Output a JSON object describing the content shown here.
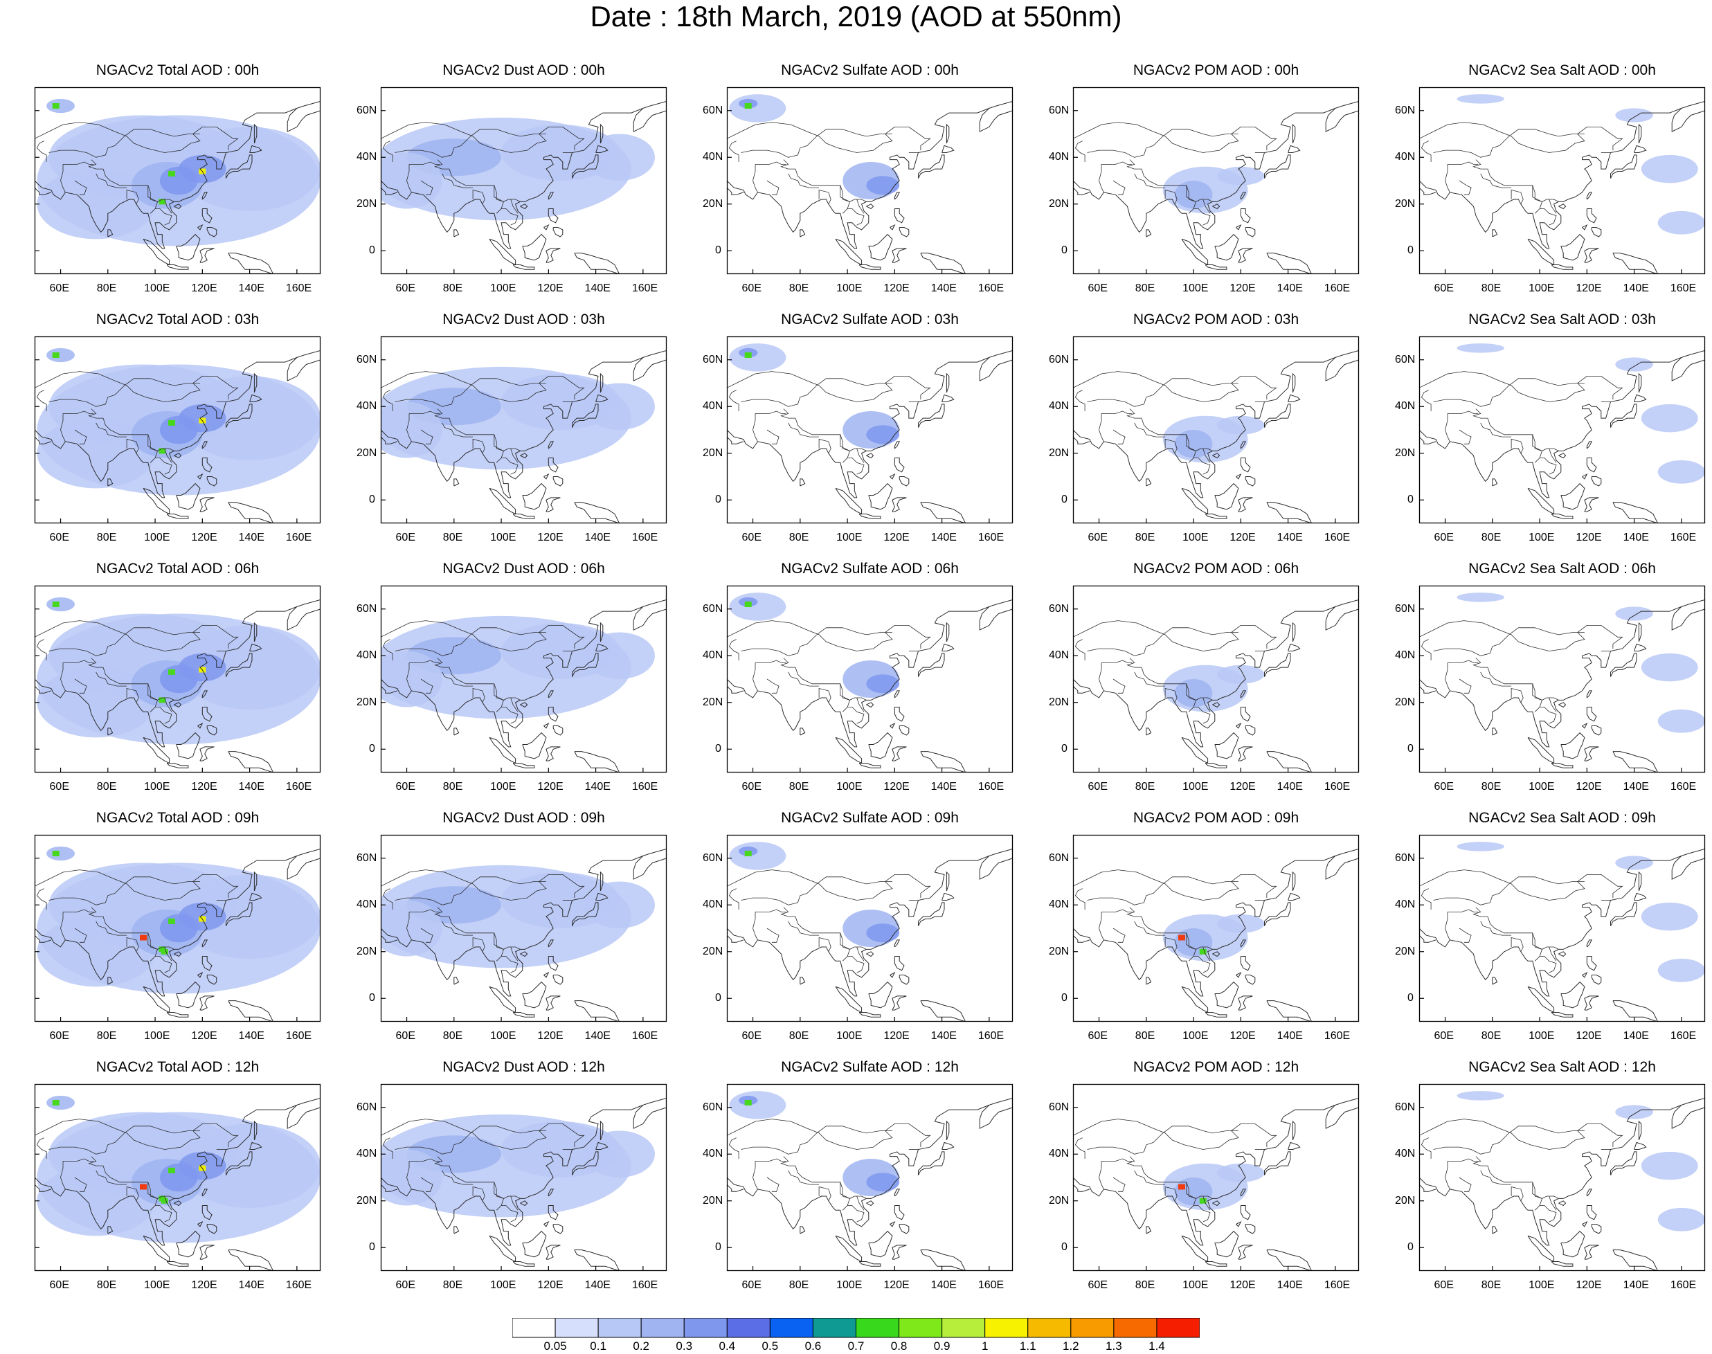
{
  "title": "Date : 18th March, 2019 (AOD at 550nm)",
  "panels": [
    {
      "title": "NGACv2 Total AOD : 00h",
      "species": "total",
      "hour": "00h"
    },
    {
      "title": "NGACv2 Dust AOD : 00h",
      "species": "dust",
      "hour": "00h"
    },
    {
      "title": "NGACv2 Sulfate AOD : 00h",
      "species": "sulfate",
      "hour": "00h"
    },
    {
      "title": "NGACv2 POM AOD : 00h",
      "species": "pom",
      "hour": "00h"
    },
    {
      "title": "NGACv2 Sea Salt AOD : 00h",
      "species": "seasalt",
      "hour": "00h"
    },
    {
      "title": "NGACv2 Total AOD : 03h",
      "species": "total",
      "hour": "03h"
    },
    {
      "title": "NGACv2 Dust AOD : 03h",
      "species": "dust",
      "hour": "03h"
    },
    {
      "title": "NGACv2 Sulfate AOD : 03h",
      "species": "sulfate",
      "hour": "03h"
    },
    {
      "title": "NGACv2 POM AOD : 03h",
      "species": "pom",
      "hour": "03h"
    },
    {
      "title": "NGACv2 Sea Salt AOD : 03h",
      "species": "seasalt",
      "hour": "03h"
    },
    {
      "title": "NGACv2 Total AOD : 06h",
      "species": "total",
      "hour": "06h"
    },
    {
      "title": "NGACv2 Dust AOD : 06h",
      "species": "dust",
      "hour": "06h"
    },
    {
      "title": "NGACv2 Sulfate AOD : 06h",
      "species": "sulfate",
      "hour": "06h"
    },
    {
      "title": "NGACv2 POM AOD : 06h",
      "species": "pom",
      "hour": "06h"
    },
    {
      "title": "NGACv2 Sea Salt AOD : 06h",
      "species": "seasalt",
      "hour": "06h"
    },
    {
      "title": "NGACv2 Total AOD : 09h",
      "species": "total",
      "hour": "09h"
    },
    {
      "title": "NGACv2 Dust AOD : 09h",
      "species": "dust",
      "hour": "09h"
    },
    {
      "title": "NGACv2 Sulfate AOD : 09h",
      "species": "sulfate",
      "hour": "09h"
    },
    {
      "title": "NGACv2 POM AOD : 09h",
      "species": "pom",
      "hour": "09h"
    },
    {
      "title": "NGACv2 Sea Salt  AOD : 09h",
      "species": "seasalt",
      "hour": "09h"
    },
    {
      "title": "NGACv2 Total AOD  : 12h",
      "species": "total",
      "hour": "12h"
    },
    {
      "title": "NGACv2 Dust AOD : 12h",
      "species": "dust",
      "hour": "12h"
    },
    {
      "title": "NGACv2 Sulfate AOD : 12h",
      "species": "sulfate",
      "hour": "12h"
    },
    {
      "title": "NGACv2 POM  AOD : 12h",
      "species": "pom",
      "hour": "12h"
    },
    {
      "title": "NGACv2 Sea Salt  AOD : 12h",
      "species": "seasalt",
      "hour": "12h"
    }
  ],
  "axes": {
    "lon_range": [
      49,
      170
    ],
    "lat_range": [
      -10,
      70
    ],
    "lon_ticks": [
      "60E",
      "80E",
      "100E",
      "120E",
      "140E",
      "160E"
    ],
    "lon_tick_values": [
      60,
      80,
      100,
      120,
      140,
      160
    ],
    "lat_ticks": [
      "0",
      "20N",
      "40N",
      "60N"
    ],
    "lat_tick_values": [
      0,
      20,
      40,
      60
    ]
  },
  "colorbar": {
    "labels": [
      "0.05",
      "0.1",
      "0.2",
      "0.3",
      "0.4",
      "0.5",
      "0.6",
      "0.7",
      "0.8",
      "0.9",
      "1",
      "1.1",
      "1.2",
      "1.3",
      "1.4"
    ],
    "colors": [
      "#ffffff",
      "#d6e0fc",
      "#b8c8f6",
      "#9fb4f1",
      "#7f98ee",
      "#5c6ee6",
      "#0a62f3",
      "#0f9a93",
      "#38d81d",
      "#7ee81a",
      "#b7ee3c",
      "#f7f300",
      "#f6bb00",
      "#f79b00",
      "#f66a00",
      "#f51f00"
    ]
  },
  "map_colors": {
    "coastline": "#2b2b2b",
    "hotspot_green": "#47d81e",
    "hotspot_yellow": "#eef000",
    "hotspot_red": "#f03a10"
  }
}
